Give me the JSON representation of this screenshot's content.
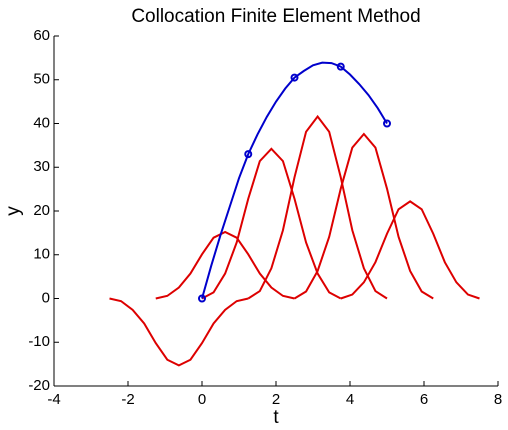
{
  "chart_data": {
    "type": "line",
    "title": "Collocation Finite Element Method",
    "xlabel": "t",
    "ylabel": "y",
    "xlim": [
      -4,
      8
    ],
    "ylim": [
      -20,
      60
    ],
    "xticks": [
      -4,
      -2,
      0,
      2,
      4,
      6,
      8
    ],
    "yticks": [
      -20,
      -10,
      0,
      10,
      20,
      30,
      40,
      50,
      60
    ],
    "series": [
      {
        "color": "#dd0000",
        "x": [
          -2.5,
          -2.1875,
          -1.875,
          -1.5625,
          -1.25,
          -0.9375,
          -0.625,
          -0.3125,
          0,
          0.3125,
          0.625,
          0.9375,
          1.25
        ],
        "values": [
          0,
          -0.6,
          -2.6,
          -5.7,
          -10.2,
          -14.0,
          -15.3,
          -14.0,
          -10.2,
          -5.7,
          -2.6,
          -0.6,
          0
        ]
      },
      {
        "color": "#dd0000",
        "x": [
          -1.25,
          -0.9375,
          -0.625,
          -0.3125,
          0,
          0.3125,
          0.625,
          0.9375,
          1.25,
          1.5625,
          1.875,
          2.1875,
          2.5
        ],
        "values": [
          0,
          0.6,
          2.5,
          5.7,
          10.1,
          13.9,
          15.2,
          13.9,
          10.1,
          5.7,
          2.5,
          0.6,
          0
        ]
      },
      {
        "color": "#dd0000",
        "x": [
          0,
          0.3125,
          0.625,
          0.9375,
          1.25,
          1.5625,
          1.875,
          2.1875,
          2.5,
          2.8125,
          3.125,
          3.4375,
          3.75
        ],
        "values": [
          0,
          1.4,
          5.7,
          12.8,
          22.8,
          31.4,
          34.2,
          31.4,
          22.8,
          12.8,
          5.7,
          1.4,
          0
        ]
      },
      {
        "color": "#dd0000",
        "x": [
          1.25,
          1.5625,
          1.875,
          2.1875,
          2.5,
          2.8125,
          3.125,
          3.4375,
          3.75,
          4.0625,
          4.375,
          4.6875,
          5
        ],
        "values": [
          0,
          1.7,
          6.9,
          15.6,
          27.7,
          38.1,
          41.6,
          38.1,
          27.7,
          15.6,
          6.9,
          1.7,
          0
        ]
      },
      {
        "color": "#dd0000",
        "x": [
          2.5,
          2.8125,
          3.125,
          3.4375,
          3.75,
          4.0625,
          4.375,
          4.6875,
          5,
          5.3125,
          5.625,
          5.9375,
          6.25
        ],
        "values": [
          0,
          1.6,
          6.3,
          14.1,
          25.1,
          34.5,
          37.6,
          34.5,
          25.1,
          14.1,
          6.3,
          1.6,
          0
        ]
      },
      {
        "color": "#dd0000",
        "x": [
          3.75,
          4.0625,
          4.375,
          4.6875,
          5,
          5.3125,
          5.625,
          5.9375,
          6.25,
          6.5625,
          6.875,
          7.1875,
          7.5
        ],
        "values": [
          0,
          0.9,
          3.7,
          8.3,
          14.8,
          20.4,
          22.2,
          20.4,
          14.8,
          8.3,
          3.7,
          0.9,
          0
        ]
      },
      {
        "color": "#0000cc",
        "x": [
          0,
          0.25,
          0.5,
          0.75,
          1,
          1.25,
          1.5,
          1.75,
          2,
          2.25,
          2.5,
          2.75,
          3,
          3.25,
          3.5,
          3.75,
          4,
          4.25,
          4.5,
          4.75,
          5
        ],
        "values": [
          0,
          7.5,
          14.5,
          21,
          27.5,
          33,
          37.5,
          41.5,
          45,
          48,
          50.5,
          52,
          53.3,
          53.9,
          53.8,
          53,
          51.2,
          49,
          46.5,
          43.5,
          40
        ]
      },
      {
        "color": "#0000cc",
        "linestyle": "none",
        "marker": "o",
        "x": [
          0,
          1.25,
          2.5,
          3.75,
          5
        ],
        "values": [
          0,
          33,
          50.5,
          53,
          40
        ]
      }
    ]
  }
}
